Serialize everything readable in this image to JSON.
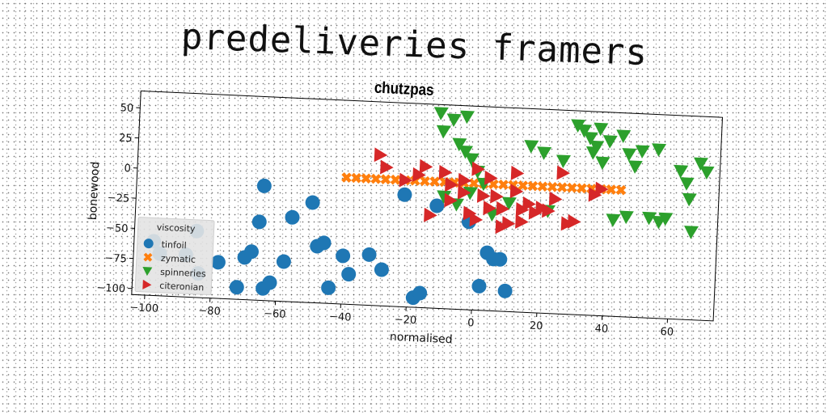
{
  "banner": "predeliveries framers",
  "chart_data": {
    "type": "scatter",
    "title": "chutzpas",
    "xlabel": "normalised",
    "ylabel": "bonewood",
    "xlim": [
      -104,
      74
    ],
    "ylim": [
      -105,
      64
    ],
    "xticks": [
      -100,
      -80,
      -60,
      -40,
      -20,
      0,
      20,
      40,
      60
    ],
    "yticks": [
      -100,
      -75,
      -50,
      -25,
      0,
      25,
      50
    ],
    "grid": false,
    "legend": {
      "title": "viscosity",
      "position": "lower-left"
    },
    "series": [
      {
        "name": "tinfoil",
        "marker": "circle",
        "color": "#1f77b4",
        "points": [
          [
            -98,
            -60
          ],
          [
            -96,
            -70
          ],
          [
            -85,
            -50
          ],
          [
            -88,
            -70
          ],
          [
            -84,
            -85
          ],
          [
            -78,
            -75
          ],
          [
            -72,
            -95
          ],
          [
            -70,
            -70
          ],
          [
            -68,
            -65
          ],
          [
            -66,
            -40
          ],
          [
            -65,
            -10
          ],
          [
            -64,
            -95
          ],
          [
            -62,
            -90
          ],
          [
            -58,
            -72
          ],
          [
            -56,
            -35
          ],
          [
            -50,
            -22
          ],
          [
            -48,
            -58
          ],
          [
            -46,
            -55
          ],
          [
            -44,
            -92
          ],
          [
            -40,
            -65
          ],
          [
            -38,
            -80
          ],
          [
            -32,
            -63
          ],
          [
            -28,
            -75
          ],
          [
            -22,
            -12
          ],
          [
            -18,
            -97
          ],
          [
            -16,
            -93
          ],
          [
            -12,
            -20
          ],
          [
            -2,
            -32
          ],
          [
            2,
            -85
          ],
          [
            4,
            -57
          ],
          [
            6,
            -62
          ],
          [
            8,
            -62
          ],
          [
            10,
            -88
          ]
        ]
      },
      {
        "name": "zymatic",
        "marker": "x",
        "color": "#ff7f0e",
        "points": [
          [
            -40,
            0
          ],
          [
            -37,
            0
          ],
          [
            -34,
            0
          ],
          [
            -31,
            0
          ],
          [
            -28,
            0
          ],
          [
            -25,
            0
          ],
          [
            -22,
            0
          ],
          [
            -19,
            0
          ],
          [
            -16,
            0
          ],
          [
            -13,
            0
          ],
          [
            -10,
            0
          ],
          [
            -7,
            0
          ],
          [
            -4,
            0
          ],
          [
            -1,
            0
          ],
          [
            2,
            0
          ],
          [
            5,
            0
          ],
          [
            8,
            0
          ],
          [
            11,
            0
          ],
          [
            14,
            0
          ],
          [
            17,
            0
          ],
          [
            20,
            0
          ],
          [
            23,
            0
          ],
          [
            26,
            0
          ],
          [
            29,
            0
          ],
          [
            32,
            0
          ],
          [
            35,
            0
          ],
          [
            38,
            0
          ],
          [
            41,
            0
          ],
          [
            44,
            0
          ]
        ]
      },
      {
        "name": "spinneries",
        "marker": "triangle-down",
        "color": "#2ca02c",
        "points": [
          [
            -12,
            57
          ],
          [
            -8,
            52
          ],
          [
            -4,
            55
          ],
          [
            -11,
            42
          ],
          [
            -6,
            32
          ],
          [
            -4,
            26
          ],
          [
            -2,
            20
          ],
          [
            0,
            10
          ],
          [
            2,
            0
          ],
          [
            -10,
            -12
          ],
          [
            -6,
            -18
          ],
          [
            -2,
            -8
          ],
          [
            5,
            -25
          ],
          [
            10,
            -15
          ],
          [
            16,
            33
          ],
          [
            20,
            28
          ],
          [
            22,
            -20
          ],
          [
            26,
            22
          ],
          [
            30,
            52
          ],
          [
            32,
            48
          ],
          [
            34,
            42
          ],
          [
            35,
            30
          ],
          [
            36,
            35
          ],
          [
            37,
            50
          ],
          [
            38,
            22
          ],
          [
            40,
            40
          ],
          [
            42,
            -25
          ],
          [
            44,
            45
          ],
          [
            46,
            30
          ],
          [
            46,
            -22
          ],
          [
            48,
            20
          ],
          [
            50,
            33
          ],
          [
            53,
            -22
          ],
          [
            55,
            35
          ],
          [
            56,
            -25
          ],
          [
            58,
            -22
          ],
          [
            62,
            18
          ],
          [
            64,
            8
          ],
          [
            65,
            -5
          ],
          [
            66,
            -32
          ],
          [
            68,
            25
          ],
          [
            70,
            18
          ]
        ]
      },
      {
        "name": "citeronian",
        "marker": "triangle-right",
        "color": "#d62728",
        "points": [
          [
            -30,
            20
          ],
          [
            -28,
            10
          ],
          [
            -22,
            0
          ],
          [
            -18,
            5
          ],
          [
            -16,
            12
          ],
          [
            -14,
            -28
          ],
          [
            -10,
            8
          ],
          [
            -8,
            -2
          ],
          [
            -8,
            -15
          ],
          [
            -4,
            2
          ],
          [
            -4,
            -8
          ],
          [
            -2,
            -25
          ],
          [
            0,
            -30
          ],
          [
            0,
            12
          ],
          [
            2,
            -10
          ],
          [
            4,
            5
          ],
          [
            4,
            -20
          ],
          [
            6,
            -10
          ],
          [
            8,
            -35
          ],
          [
            8,
            -20
          ],
          [
            10,
            -32
          ],
          [
            12,
            -5
          ],
          [
            12,
            10
          ],
          [
            14,
            -30
          ],
          [
            14,
            -20
          ],
          [
            16,
            -15
          ],
          [
            18,
            -22
          ],
          [
            20,
            -18
          ],
          [
            22,
            -20
          ],
          [
            24,
            -10
          ],
          [
            26,
            12
          ],
          [
            28,
            -30
          ],
          [
            30,
            -28
          ],
          [
            36,
            -5
          ],
          [
            38,
            0
          ]
        ]
      }
    ]
  }
}
